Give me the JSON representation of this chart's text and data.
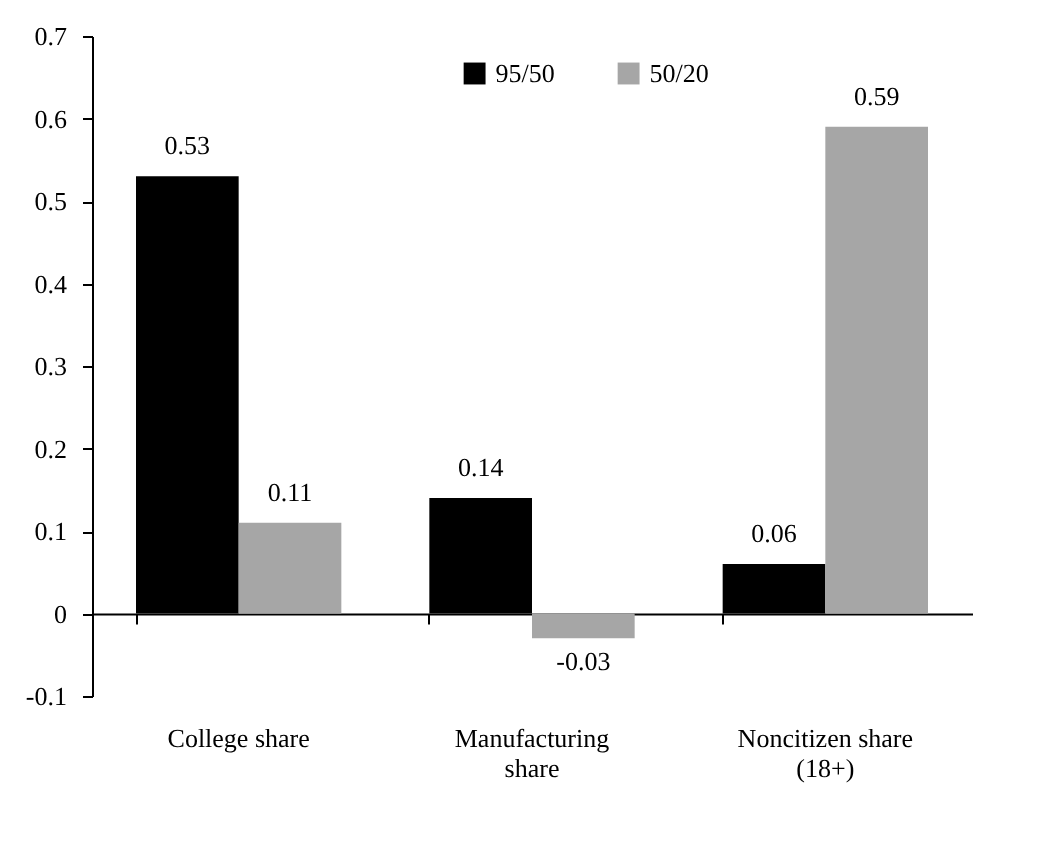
{
  "chart_data": {
    "type": "bar",
    "categories": [
      "College share",
      "Manufacturing share",
      "Noncitizen share (18+)"
    ],
    "series": [
      {
        "name": "95/50",
        "color": "#000000",
        "values": [
          0.53,
          0.14,
          0.06
        ]
      },
      {
        "name": "50/20",
        "color": "#a6a6a6",
        "values": [
          0.11,
          -0.03,
          0.59
        ]
      }
    ],
    "ylim": [
      -0.1,
      0.7
    ],
    "yticks": [
      -0.1,
      0,
      0.1,
      0.2,
      0.3,
      0.4,
      0.5,
      0.6,
      0.7
    ],
    "data_labels": true,
    "legend": "top"
  }
}
